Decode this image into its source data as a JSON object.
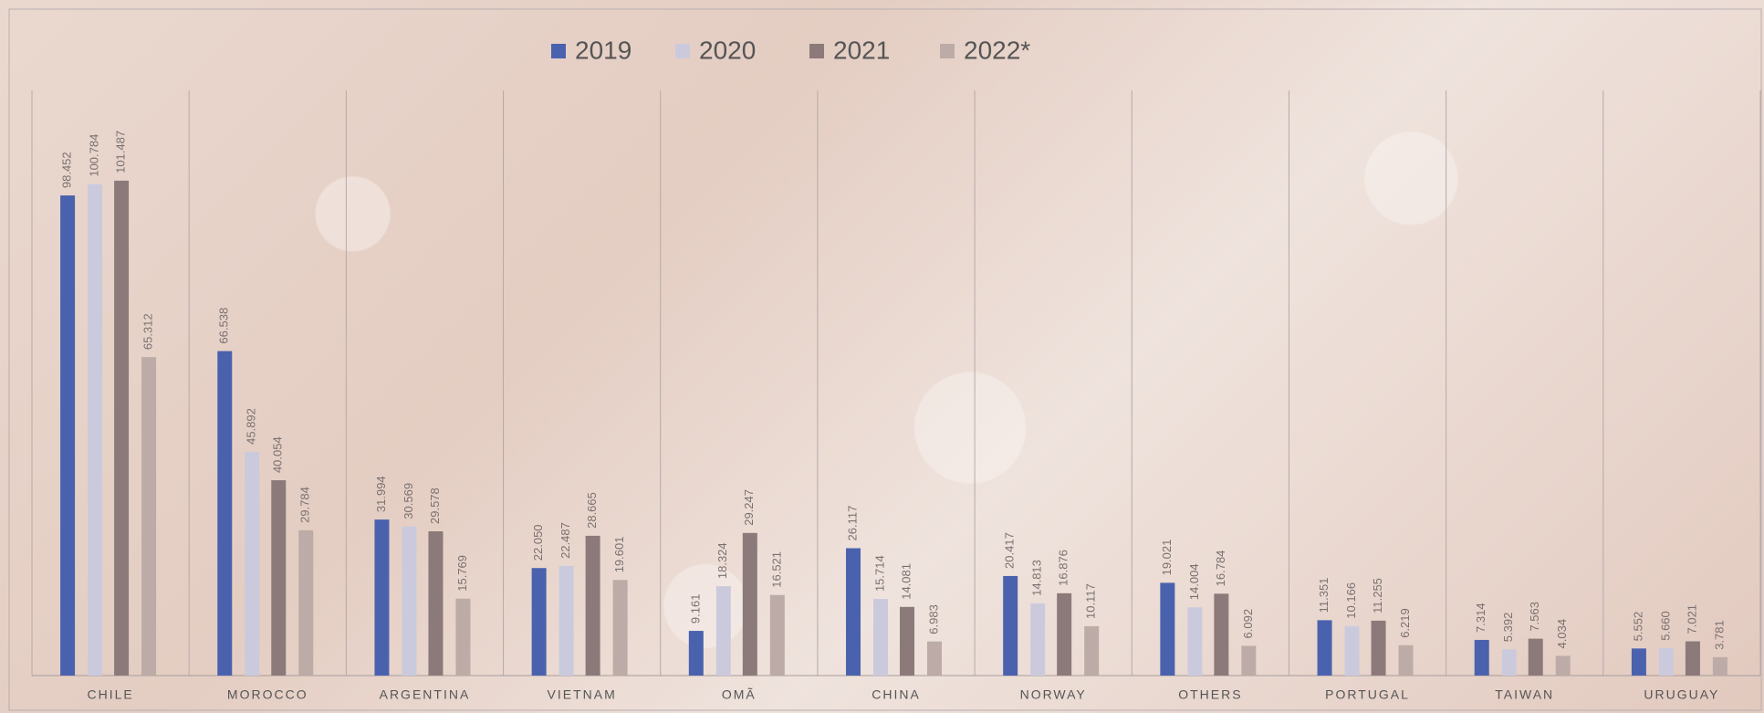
{
  "chart_data": {
    "type": "bar",
    "categories": [
      "CHILE",
      "MOROCCO",
      "ARGENTINA",
      "VIETNAM",
      "OMÃ",
      "CHINA",
      "NORWAY",
      "OTHERS",
      "PORTUGAL",
      "TAIWAN",
      "URUGUAY"
    ],
    "series": [
      {
        "name": "2019",
        "color": "#4a62ae",
        "values": [
          98.452,
          66.538,
          31.994,
          22.05,
          9.161,
          26.117,
          20.417,
          19.021,
          11.351,
          7.314,
          5.552
        ],
        "value_labels": [
          "98.452",
          "66.538",
          "31.994",
          "22.050",
          "9.161",
          "26.117",
          "20.417",
          "19.021",
          "11.351",
          "7.314",
          "5.552"
        ]
      },
      {
        "name": "2020",
        "color": "#cbcadd",
        "values": [
          100.784,
          45.892,
          30.569,
          22.487,
          18.324,
          15.714,
          14.813,
          14.004,
          10.166,
          5.392,
          5.66
        ],
        "value_labels": [
          "100.784",
          "45.892",
          "30.569",
          "22.487",
          "18.324",
          "15.714",
          "14.813",
          "14.004",
          "10.166",
          "5.392",
          "5.660"
        ]
      },
      {
        "name": "2021",
        "color": "#8c7a7a",
        "values": [
          101.487,
          40.054,
          29.578,
          28.665,
          29.247,
          14.081,
          16.876,
          16.784,
          11.255,
          7.563,
          7.021
        ],
        "value_labels": [
          "101.487",
          "40.054",
          "29.578",
          "28.665",
          "29.247",
          "14.081",
          "16.876",
          "16.784",
          "11.255",
          "7.563",
          "7.021"
        ]
      },
      {
        "name": "2022*",
        "color": "#bcaba6",
        "values": [
          65.312,
          29.784,
          15.769,
          19.601,
          16.521,
          6.983,
          10.117,
          6.092,
          6.219,
          4.034,
          3.781
        ],
        "value_labels": [
          "65.312",
          "29.784",
          "15.769",
          "19.601",
          "16.521",
          "6.983",
          "10.117",
          "6.092",
          "6.219",
          "4.034",
          "3.781"
        ]
      }
    ],
    "ylim": [
      0,
      120
    ]
  }
}
